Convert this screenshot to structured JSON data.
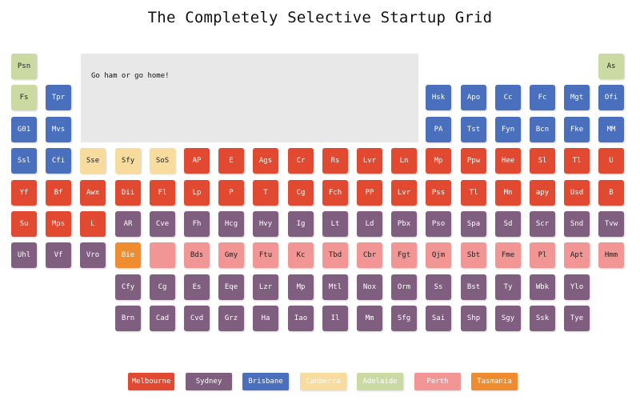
{
  "title": "The Completely Selective Startup Grid",
  "message": "Go ham or go home!",
  "groups": {
    "melbourne": {
      "label": "Melbourne",
      "color": "#e14a30",
      "text": "#ffffff"
    },
    "sydney": {
      "label": "Sydney",
      "color": "#7f5e7f",
      "text": "#ffffff"
    },
    "brisbane": {
      "label": "Brisbane",
      "color": "#4a6fbd",
      "text": "#ffffff"
    },
    "canberra": {
      "label": "Canberra",
      "color": "#f8dc9e",
      "text": "#ffffff"
    },
    "adelaide": {
      "label": "Adelaide",
      "color": "#cbdaa3",
      "text": "#ffffff"
    },
    "perth": {
      "label": "Perth",
      "color": "#f19595",
      "text": "#ffffff"
    },
    "tasmania": {
      "label": "Tasmania",
      "color": "#ef8c30",
      "text": "#ffffff"
    }
  },
  "legend": [
    "melbourne",
    "sydney",
    "brisbane",
    "canberra",
    "adelaide",
    "perth",
    "tasmania"
  ],
  "tiles": [
    {
      "label": "Psn",
      "group": "adelaide",
      "row": 0,
      "col": 0
    },
    {
      "label": "As",
      "group": "adelaide",
      "row": 0,
      "col": 17
    },
    {
      "label": "Fs",
      "group": "adelaide",
      "row": 1,
      "col": 0
    },
    {
      "label": "Tpr",
      "group": "brisbane",
      "row": 1,
      "col": 1
    },
    {
      "label": "Hsk",
      "group": "brisbane",
      "row": 1,
      "col": 12
    },
    {
      "label": "Apo",
      "group": "brisbane",
      "row": 1,
      "col": 13
    },
    {
      "label": "Cc",
      "group": "brisbane",
      "row": 1,
      "col": 14
    },
    {
      "label": "Fc",
      "group": "brisbane",
      "row": 1,
      "col": 15
    },
    {
      "label": "Mgt",
      "group": "brisbane",
      "row": 1,
      "col": 16
    },
    {
      "label": "Ofi",
      "group": "brisbane",
      "row": 1,
      "col": 17
    },
    {
      "label": "G01",
      "group": "brisbane",
      "row": 2,
      "col": 0
    },
    {
      "label": "Mvs",
      "group": "brisbane",
      "row": 2,
      "col": 1
    },
    {
      "label": "PA",
      "group": "brisbane",
      "row": 2,
      "col": 12
    },
    {
      "label": "Tst",
      "group": "brisbane",
      "row": 2,
      "col": 13
    },
    {
      "label": "Fyn",
      "group": "brisbane",
      "row": 2,
      "col": 14
    },
    {
      "label": "Bcn",
      "group": "brisbane",
      "row": 2,
      "col": 15
    },
    {
      "label": "Fke",
      "group": "brisbane",
      "row": 2,
      "col": 16
    },
    {
      "label": "MM",
      "group": "brisbane",
      "row": 2,
      "col": 17
    },
    {
      "label": "Ssl",
      "group": "brisbane",
      "row": 3,
      "col": 0
    },
    {
      "label": "Cfi",
      "group": "brisbane",
      "row": 3,
      "col": 1
    },
    {
      "label": "Sse",
      "group": "canberra",
      "row": 3,
      "col": 2
    },
    {
      "label": "Sfy",
      "group": "canberra",
      "row": 3,
      "col": 3
    },
    {
      "label": "SoS",
      "group": "canberra",
      "row": 3,
      "col": 4
    },
    {
      "label": "AP",
      "group": "melbourne",
      "row": 3,
      "col": 5
    },
    {
      "label": "E",
      "group": "melbourne",
      "row": 3,
      "col": 6
    },
    {
      "label": "Ags",
      "group": "melbourne",
      "row": 3,
      "col": 7
    },
    {
      "label": "Cr",
      "group": "melbourne",
      "row": 3,
      "col": 8
    },
    {
      "label": "Rs",
      "group": "melbourne",
      "row": 3,
      "col": 9
    },
    {
      "label": "Lvr",
      "group": "melbourne",
      "row": 3,
      "col": 10
    },
    {
      "label": "Ln",
      "group": "melbourne",
      "row": 3,
      "col": 11
    },
    {
      "label": "Mp",
      "group": "melbourne",
      "row": 3,
      "col": 12
    },
    {
      "label": "Ppw",
      "group": "melbourne",
      "row": 3,
      "col": 13
    },
    {
      "label": "Hee",
      "group": "melbourne",
      "row": 3,
      "col": 14
    },
    {
      "label": "Sl",
      "group": "melbourne",
      "row": 3,
      "col": 15
    },
    {
      "label": "Tl",
      "group": "melbourne",
      "row": 3,
      "col": 16
    },
    {
      "label": "U",
      "group": "melbourne",
      "row": 3,
      "col": 17
    },
    {
      "label": "Yf",
      "group": "melbourne",
      "row": 4,
      "col": 0
    },
    {
      "label": "Bf",
      "group": "melbourne",
      "row": 4,
      "col": 1
    },
    {
      "label": "Awx",
      "group": "melbourne",
      "row": 4,
      "col": 2
    },
    {
      "label": "Dii",
      "group": "melbourne",
      "row": 4,
      "col": 3
    },
    {
      "label": "Fl",
      "group": "melbourne",
      "row": 4,
      "col": 4
    },
    {
      "label": "Lp",
      "group": "melbourne",
      "row": 4,
      "col": 5
    },
    {
      "label": "P",
      "group": "melbourne",
      "row": 4,
      "col": 6
    },
    {
      "label": "T",
      "group": "melbourne",
      "row": 4,
      "col": 7
    },
    {
      "label": "Cg",
      "group": "melbourne",
      "row": 4,
      "col": 8
    },
    {
      "label": "Fch",
      "group": "melbourne",
      "row": 4,
      "col": 9
    },
    {
      "label": "PP",
      "group": "melbourne",
      "row": 4,
      "col": 10
    },
    {
      "label": "Lvr",
      "group": "melbourne",
      "row": 4,
      "col": 11
    },
    {
      "label": "Pss",
      "group": "melbourne",
      "row": 4,
      "col": 12
    },
    {
      "label": "Tl",
      "group": "melbourne",
      "row": 4,
      "col": 13
    },
    {
      "label": "Mn",
      "group": "melbourne",
      "row": 4,
      "col": 14
    },
    {
      "label": "apy",
      "group": "melbourne",
      "row": 4,
      "col": 15
    },
    {
      "label": "Usd",
      "group": "melbourne",
      "row": 4,
      "col": 16
    },
    {
      "label": "B",
      "group": "melbourne",
      "row": 4,
      "col": 17
    },
    {
      "label": "Su",
      "group": "melbourne",
      "row": 5,
      "col": 0
    },
    {
      "label": "Mps",
      "group": "melbourne",
      "row": 5,
      "col": 1
    },
    {
      "label": "L",
      "group": "melbourne",
      "row": 5,
      "col": 2
    },
    {
      "label": "AR",
      "group": "sydney",
      "row": 5,
      "col": 3
    },
    {
      "label": "Cve",
      "group": "sydney",
      "row": 5,
      "col": 4
    },
    {
      "label": "Fh",
      "group": "sydney",
      "row": 5,
      "col": 5
    },
    {
      "label": "Hcg",
      "group": "sydney",
      "row": 5,
      "col": 6
    },
    {
      "label": "Hvy",
      "group": "sydney",
      "row": 5,
      "col": 7
    },
    {
      "label": "Ig",
      "group": "sydney",
      "row": 5,
      "col": 8
    },
    {
      "label": "Lt",
      "group": "sydney",
      "row": 5,
      "col": 9
    },
    {
      "label": "Ld",
      "group": "sydney",
      "row": 5,
      "col": 10
    },
    {
      "label": "Pbx",
      "group": "sydney",
      "row": 5,
      "col": 11
    },
    {
      "label": "Pso",
      "group": "sydney",
      "row": 5,
      "col": 12
    },
    {
      "label": "Spa",
      "group": "sydney",
      "row": 5,
      "col": 13
    },
    {
      "label": "Sd",
      "group": "sydney",
      "row": 5,
      "col": 14
    },
    {
      "label": "Scr",
      "group": "sydney",
      "row": 5,
      "col": 15
    },
    {
      "label": "Snd",
      "group": "sydney",
      "row": 5,
      "col": 16
    },
    {
      "label": "Tvw",
      "group": "sydney",
      "row": 5,
      "col": 17
    },
    {
      "label": "Uhl",
      "group": "sydney",
      "row": 6,
      "col": 0
    },
    {
      "label": "Vf",
      "group": "sydney",
      "row": 6,
      "col": 1
    },
    {
      "label": "Vro",
      "group": "sydney",
      "row": 6,
      "col": 2
    },
    {
      "label": "Bie",
      "group": "tasmania",
      "row": 6,
      "col": 3
    },
    {
      "label": "",
      "group": "perth",
      "row": 6,
      "col": 4
    },
    {
      "label": "Bds",
      "group": "perth",
      "row": 6,
      "col": 5
    },
    {
      "label": "Gmy",
      "group": "perth",
      "row": 6,
      "col": 6
    },
    {
      "label": "Ftu",
      "group": "perth",
      "row": 6,
      "col": 7
    },
    {
      "label": "Kc",
      "group": "perth",
      "row": 6,
      "col": 8
    },
    {
      "label": "Tbd",
      "group": "perth",
      "row": 6,
      "col": 9
    },
    {
      "label": "Cbr",
      "group": "perth",
      "row": 6,
      "col": 10
    },
    {
      "label": "Fgt",
      "group": "perth",
      "row": 6,
      "col": 11
    },
    {
      "label": "Qjm",
      "group": "perth",
      "row": 6,
      "col": 12
    },
    {
      "label": "Sbt",
      "group": "perth",
      "row": 6,
      "col": 13
    },
    {
      "label": "Fme",
      "group": "perth",
      "row": 6,
      "col": 14
    },
    {
      "label": "Pl",
      "group": "perth",
      "row": 6,
      "col": 15
    },
    {
      "label": "Apt",
      "group": "perth",
      "row": 6,
      "col": 16
    },
    {
      "label": "Hmm",
      "group": "perth",
      "row": 6,
      "col": 17
    },
    {
      "label": "Cfy",
      "group": "sydney",
      "row": 7,
      "col": 3
    },
    {
      "label": "Cg",
      "group": "sydney",
      "row": 7,
      "col": 4
    },
    {
      "label": "Es",
      "group": "sydney",
      "row": 7,
      "col": 5
    },
    {
      "label": "Eqe",
      "group": "sydney",
      "row": 7,
      "col": 6
    },
    {
      "label": "Lzr",
      "group": "sydney",
      "row": 7,
      "col": 7
    },
    {
      "label": "Mp",
      "group": "sydney",
      "row": 7,
      "col": 8
    },
    {
      "label": "Mtl",
      "group": "sydney",
      "row": 7,
      "col": 9
    },
    {
      "label": "Nox",
      "group": "sydney",
      "row": 7,
      "col": 10
    },
    {
      "label": "Orm",
      "group": "sydney",
      "row": 7,
      "col": 11
    },
    {
      "label": "Ss",
      "group": "sydney",
      "row": 7,
      "col": 12
    },
    {
      "label": "Bst",
      "group": "sydney",
      "row": 7,
      "col": 13
    },
    {
      "label": "Ty",
      "group": "sydney",
      "row": 7,
      "col": 14
    },
    {
      "label": "Wbk",
      "group": "sydney",
      "row": 7,
      "col": 15
    },
    {
      "label": "Ylo",
      "group": "sydney",
      "row": 7,
      "col": 16
    },
    {
      "label": "Brn",
      "group": "sydney",
      "row": 8,
      "col": 3
    },
    {
      "label": "Cad",
      "group": "sydney",
      "row": 8,
      "col": 4
    },
    {
      "label": "Cvd",
      "group": "sydney",
      "row": 8,
      "col": 5
    },
    {
      "label": "Grz",
      "group": "sydney",
      "row": 8,
      "col": 6
    },
    {
      "label": "Ha",
      "group": "sydney",
      "row": 8,
      "col": 7
    },
    {
      "label": "Iao",
      "group": "sydney",
      "row": 8,
      "col": 8
    },
    {
      "label": "Il",
      "group": "sydney",
      "row": 8,
      "col": 9
    },
    {
      "label": "Mm",
      "group": "sydney",
      "row": 8,
      "col": 10
    },
    {
      "label": "Sfg",
      "group": "sydney",
      "row": 8,
      "col": 11
    },
    {
      "label": "Sai",
      "group": "sydney",
      "row": 8,
      "col": 12
    },
    {
      "label": "Shp",
      "group": "sydney",
      "row": 8,
      "col": 13
    },
    {
      "label": "Sgy",
      "group": "sydney",
      "row": 8,
      "col": 14
    },
    {
      "label": "Ssk",
      "group": "sydney",
      "row": 8,
      "col": 15
    },
    {
      "label": "Tye",
      "group": "sydney",
      "row": 8,
      "col": 16
    }
  ]
}
